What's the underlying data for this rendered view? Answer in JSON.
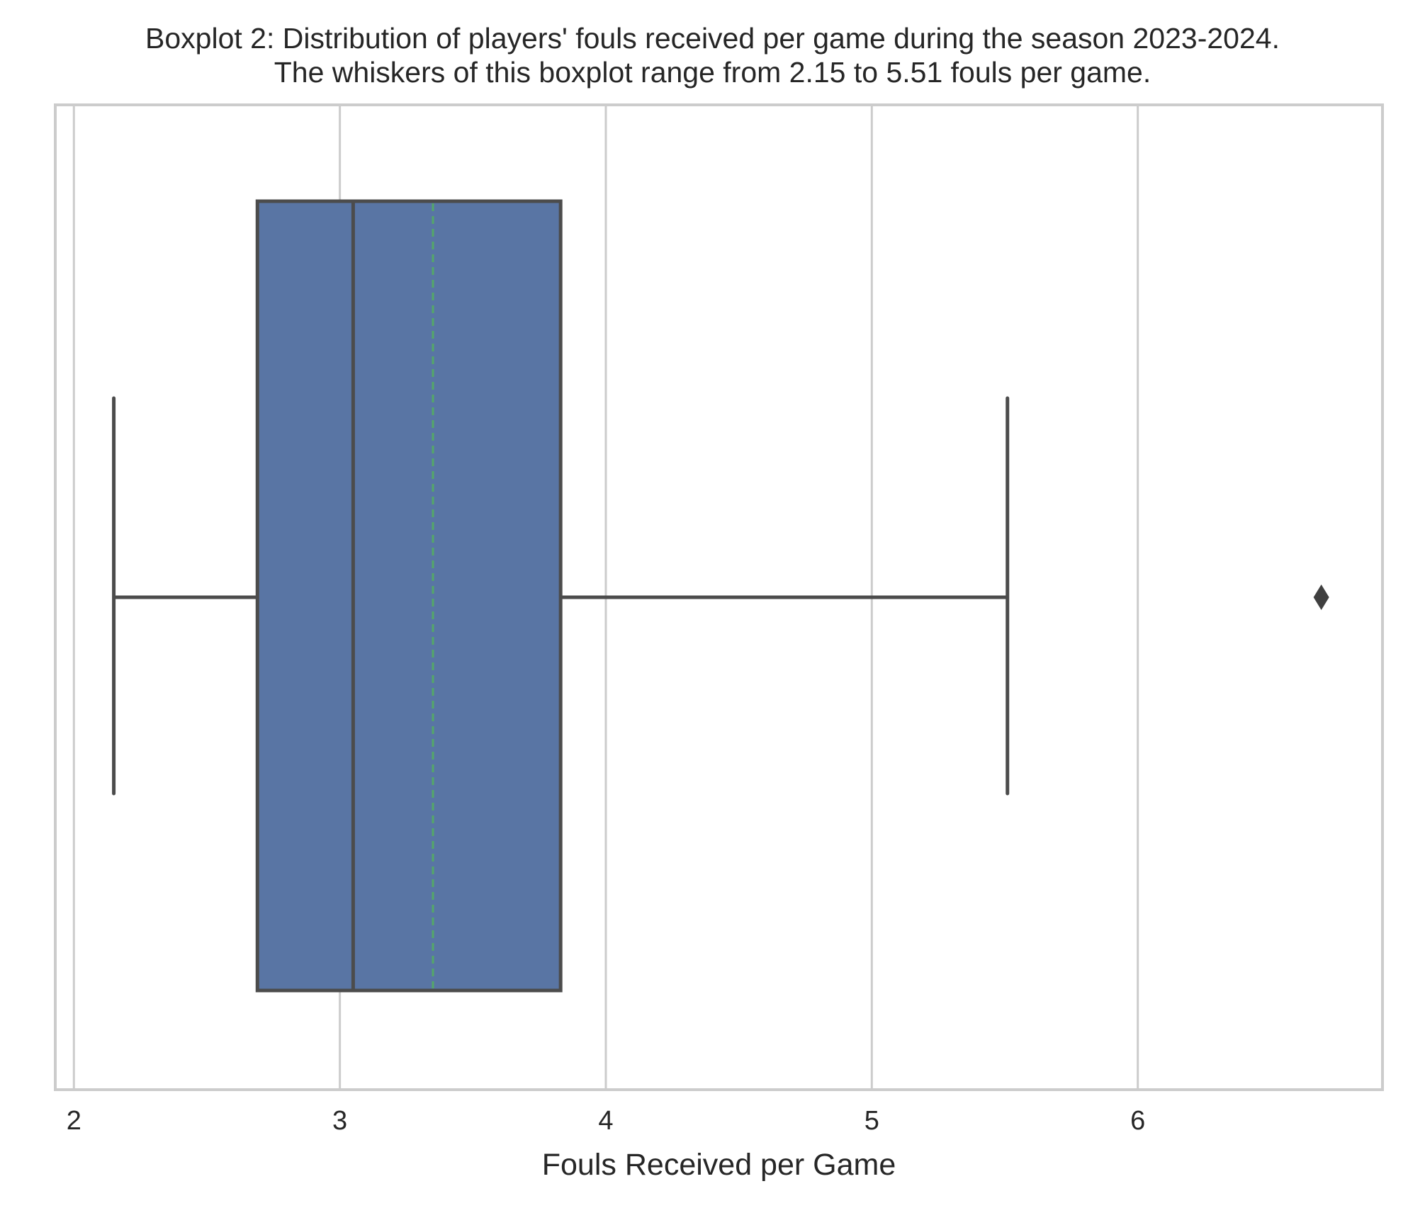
{
  "chart_data": {
    "type": "boxplot",
    "orientation": "horizontal",
    "title": [
      "Boxplot 2: Distribution of players' fouls received per game during the season 2023-2024.",
      "The whiskers of this boxplot range from 2.15 to 5.51 fouls per game."
    ],
    "xlabel": "Fouls Received per Game",
    "ylabel": "",
    "xlim": [
      1.93,
      6.92
    ],
    "xticks": [
      2,
      3,
      4,
      5,
      6
    ],
    "xtick_labels": [
      "2",
      "3",
      "4",
      "5",
      "6"
    ],
    "grid": true,
    "box": {
      "whisker_low": 2.15,
      "q1": 2.69,
      "median": 3.05,
      "mean": 3.35,
      "q3": 3.83,
      "whisker_high": 5.51,
      "outliers": [
        6.69
      ]
    },
    "colors": {
      "box_fill": "#5975a4",
      "box_edge": "#4c4c4c",
      "mean_line": "#55a868",
      "grid": "#cccccc",
      "frame": "#cccccc",
      "outlier": "#3f3f3f"
    }
  }
}
